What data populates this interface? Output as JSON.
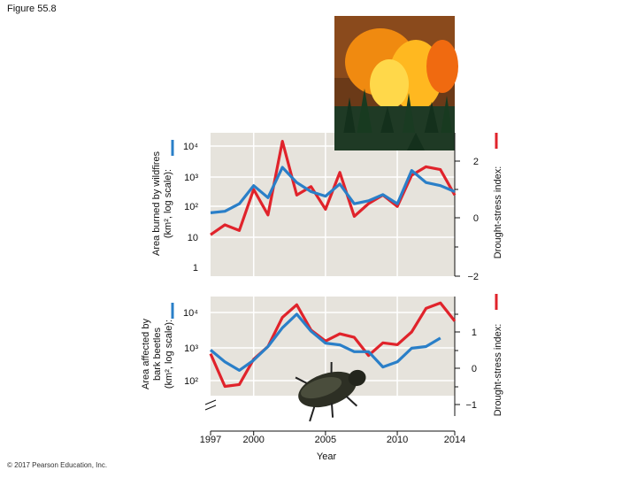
{
  "figure_label": "Figure 55.8",
  "copyright": "© 2017 Pearson Education, Inc.",
  "colors": {
    "blue": "#2a7fc8",
    "red": "#e0232b",
    "panel": "#e6e3dc",
    "grid": "#ffffff"
  },
  "xlabel": "Year",
  "x_ticks": [
    "1997",
    "2000",
    "2005",
    "2010",
    "2014"
  ],
  "chart_data": [
    {
      "type": "line",
      "panel": "top",
      "ylabel_left": [
        "Area burned by wildfires",
        "(km², log scale):"
      ],
      "ylabel_right": "Drought-stress index:",
      "y_ticks_left": [
        "1",
        "10",
        "10²",
        "10³",
        "10⁴"
      ],
      "y_ticks_right": [
        "−2",
        "0",
        "2"
      ],
      "ylim_left_log10": [
        0,
        4.4
      ],
      "ylim_right": [
        -2,
        2.5
      ],
      "x": [
        1997,
        1998,
        1999,
        2000,
        2001,
        2002,
        2003,
        2004,
        2005,
        2006,
        2007,
        2008,
        2009,
        2010,
        2011,
        2012,
        2013,
        2014
      ],
      "series": [
        {
          "axis": "left",
          "color": "blue",
          "values_log10": [
            1.8,
            1.85,
            2.1,
            2.7,
            2.3,
            3.3,
            2.8,
            2.5,
            2.35,
            2.75,
            2.1,
            2.2,
            2.4,
            2.1,
            3.2,
            2.8,
            2.7,
            2.5
          ]
        },
        {
          "axis": "right",
          "color": "red",
          "values": [
            -0.6,
            -0.25,
            -0.45,
            1.0,
            0.1,
            2.7,
            0.8,
            1.1,
            0.3,
            1.6,
            0.05,
            0.5,
            0.8,
            0.4,
            1.5,
            1.8,
            1.7,
            0.8
          ]
        }
      ]
    },
    {
      "type": "line",
      "panel": "bottom",
      "ylabel_left": [
        "Area affected by",
        "bark beetles",
        "(km², log scale):"
      ],
      "ylabel_right": "Drought-stress index:",
      "y_ticks_left": [
        "10²",
        "10³",
        "10⁴"
      ],
      "y_ticks_right": [
        "−1",
        "0",
        "1"
      ],
      "x": [
        1997,
        1998,
        1999,
        2000,
        2001,
        2002,
        2003,
        2004,
        2005,
        2006,
        2007,
        2008,
        2009,
        2010,
        2011,
        2012,
        2013,
        2014
      ],
      "series": [
        {
          "axis": "left",
          "color": "blue",
          "values_log10": [
            2.9,
            2.55,
            2.3,
            2.6,
            3.0,
            3.55,
            3.95,
            3.45,
            3.1,
            3.05,
            2.85,
            2.85,
            2.4,
            2.55,
            2.95,
            3.0,
            3.25,
            null
          ]
        },
        {
          "axis": "right",
          "color": "red",
          "values": [
            0.4,
            -0.5,
            -0.45,
            0.25,
            0.6,
            1.4,
            1.75,
            1.05,
            0.75,
            0.95,
            0.85,
            0.35,
            0.7,
            0.65,
            1.0,
            1.65,
            1.8,
            1.3
          ]
        }
      ]
    }
  ]
}
